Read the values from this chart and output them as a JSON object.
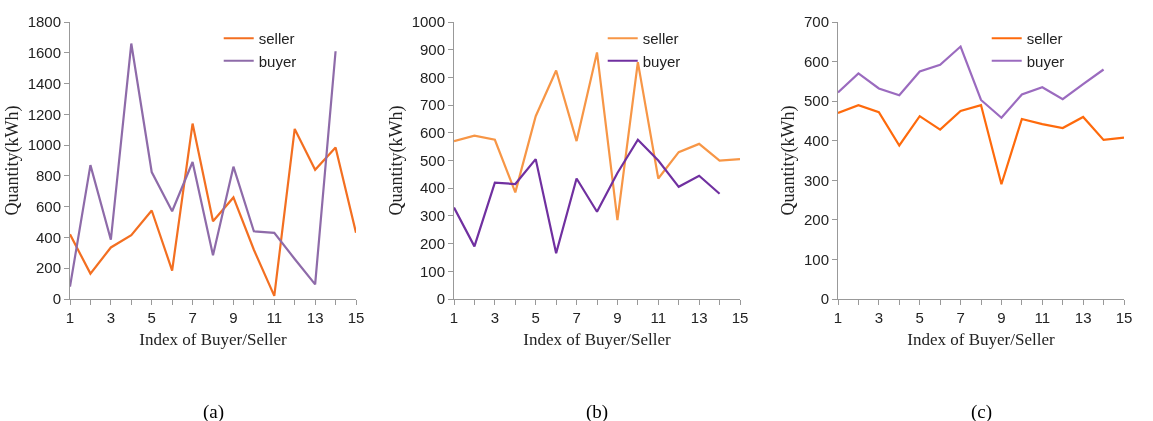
{
  "chart_data": [
    {
      "type": "line",
      "xlabel": "Index of Buyer/Seller",
      "ylabel": "Quantity(kWh)",
      "annotations": [
        "(a)"
      ],
      "legend": "top right",
      "grid": false,
      "marker": "none",
      "line_style": "solid",
      "x": [
        1,
        2,
        3,
        4,
        5,
        6,
        7,
        8,
        9,
        10,
        11,
        12,
        13,
        14,
        15
      ],
      "xlim": [
        1,
        15
      ],
      "xticks": [
        1,
        {
          "value": 2,
          "label": null
        },
        3,
        {
          "value": 4,
          "label": null
        },
        5,
        {
          "value": 6,
          "label": null
        },
        7,
        {
          "value": 8,
          "label": null
        },
        9,
        {
          "value": 10,
          "label": null
        },
        11,
        {
          "value": 12,
          "label": null
        },
        13,
        {
          "value": 14,
          "label": null
        },
        15
      ],
      "ylim": [
        0,
        1800
      ],
      "yticks": [
        0,
        200,
        400,
        600,
        800,
        1000,
        1200,
        1400,
        1600,
        1800
      ],
      "series": [
        {
          "name": "seller",
          "color": "#f36f21",
          "values": [
            420,
            165,
            335,
            415,
            575,
            185,
            1140,
            505,
            660,
            320,
            20,
            1105,
            840,
            985,
            430
          ]
        },
        {
          "name": "buyer",
          "color": "#8e6ba9",
          "values": [
            80,
            870,
            385,
            1660,
            825,
            570,
            890,
            285,
            860,
            440,
            430,
            260,
            95,
            1610,
            null
          ]
        }
      ]
    },
    {
      "type": "line",
      "xlabel": "Index of Buyer/Seller",
      "ylabel": "Quantity(kWh)",
      "annotations": [
        "(b)"
      ],
      "legend": "top right",
      "grid": false,
      "marker": "none",
      "line_style": "solid",
      "x": [
        1,
        2,
        3,
        4,
        5,
        6,
        7,
        8,
        9,
        10,
        11,
        12,
        13,
        14,
        15
      ],
      "xlim": [
        1,
        15
      ],
      "xticks": [
        1,
        {
          "value": 2,
          "label": null
        },
        3,
        {
          "value": 4,
          "label": null
        },
        5,
        {
          "value": 6,
          "label": null
        },
        7,
        {
          "value": 8,
          "label": null
        },
        9,
        {
          "value": 10,
          "label": null
        },
        11,
        {
          "value": 12,
          "label": null
        },
        13,
        {
          "value": 14,
          "label": null
        },
        15
      ],
      "ylim": [
        0,
        1000
      ],
      "yticks": [
        0,
        100,
        200,
        300,
        400,
        500,
        600,
        700,
        800,
        900,
        1000
      ],
      "series": [
        {
          "name": "seller",
          "color": "#f79646",
          "values": [
            570,
            590,
            575,
            385,
            660,
            825,
            570,
            890,
            285,
            855,
            435,
            530,
            560,
            500,
            505
          ]
        },
        {
          "name": "buyer",
          "color": "#7030a0",
          "values": [
            330,
            190,
            420,
            415,
            505,
            165,
            435,
            315,
            455,
            575,
            500,
            405,
            445,
            380,
            null
          ]
        }
      ]
    },
    {
      "type": "line",
      "xlabel": "Index of Buyer/Seller",
      "ylabel": "Quantity(kWh)",
      "annotations": [
        "(c)"
      ],
      "legend": "top right",
      "grid": false,
      "marker": "none",
      "line_style": "solid",
      "x": [
        1,
        2,
        3,
        4,
        5,
        6,
        7,
        8,
        9,
        10,
        11,
        12,
        13,
        14,
        15
      ],
      "xlim": [
        1,
        15
      ],
      "xticks": [
        1,
        {
          "value": 2,
          "label": null
        },
        3,
        {
          "value": 4,
          "label": null
        },
        5,
        {
          "value": 6,
          "label": null
        },
        7,
        {
          "value": 8,
          "label": null
        },
        9,
        {
          "value": 10,
          "label": null
        },
        11,
        {
          "value": 12,
          "label": null
        },
        13,
        {
          "value": 14,
          "label": null
        },
        15
      ],
      "ylim": [
        0,
        700
      ],
      "yticks": [
        0,
        100,
        200,
        300,
        400,
        500,
        600,
        700
      ],
      "series": [
        {
          "name": "seller",
          "color": "#fe6a0c",
          "values": [
            470,
            490,
            472,
            388,
            462,
            428,
            475,
            490,
            290,
            455,
            442,
            432,
            460,
            402,
            408
          ]
        },
        {
          "name": "buyer",
          "color": "#9b6bbf",
          "values": [
            522,
            570,
            532,
            515,
            575,
            592,
            638,
            503,
            458,
            517,
            535,
            505,
            543,
            580,
            null
          ]
        }
      ]
    }
  ]
}
